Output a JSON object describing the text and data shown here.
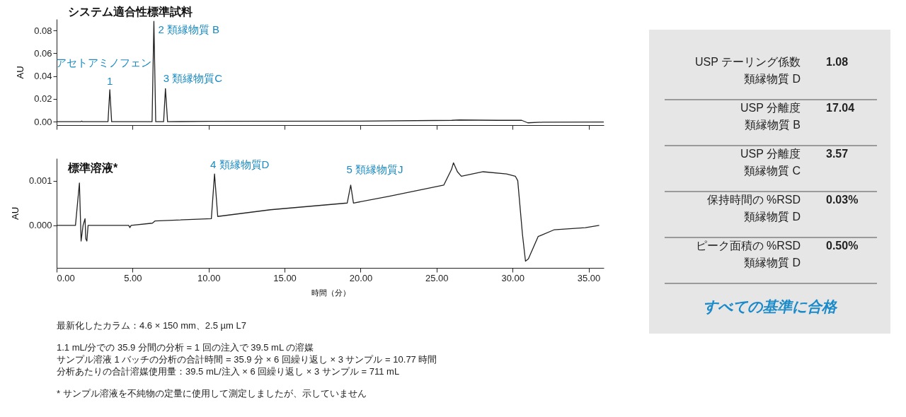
{
  "chart_data": [
    {
      "type": "line",
      "title": "システム適合性標準試料",
      "ylabel": "AU",
      "x": [
        0,
        1.6,
        1.65,
        1.7,
        3.38,
        3.5,
        3.62,
        6.28,
        6.4,
        6.52,
        7.04,
        7.16,
        7.3,
        10,
        20,
        26,
        26.5,
        29,
        30.6,
        31.0,
        32,
        36
      ],
      "series": [
        {
          "color": "#222222",
          "values": [
            0,
            0,
            0.0005,
            0,
            0,
            0.028,
            0,
            0,
            0.088,
            0,
            0,
            0.029,
            0,
            0.0003,
            0.0005,
            0.0012,
            0.0015,
            0.0012,
            0.0012,
            -0.001,
            -0.0004,
            -0.0003
          ]
        }
      ],
      "xlim": [
        0,
        36
      ],
      "xticks": [
        0,
        5,
        10,
        15,
        20,
        25,
        30,
        35
      ],
      "ylim": [
        -0.003,
        0.09
      ],
      "yticks": [
        {
          "value": 0,
          "label": "0.00"
        },
        {
          "value": 0.02,
          "label": "0.02"
        },
        {
          "value": 0.04,
          "label": "0.04"
        },
        {
          "value": 0.06,
          "label": "0.06"
        },
        {
          "value": 0.08,
          "label": "0.08"
        }
      ],
      "tick_labels": "y",
      "annotations": [
        {
          "text": "アセトアミノフェン",
          "x": 3.5,
          "y": 0.028
        },
        {
          "text": "1",
          "x": 3.5,
          "y": 0.028
        },
        {
          "text": "2 類縁物質 B",
          "x": 6.4,
          "y": 0.088
        },
        {
          "text": "3 類縁物質C",
          "x": 7.16,
          "y": 0.029
        }
      ]
    },
    {
      "type": "line",
      "title": "標準溶液*",
      "xlabel": "時間（分）",
      "ylabel": "AU",
      "x": [
        0,
        1.24,
        1.5,
        1.61,
        1.74,
        1.87,
        1.92,
        1.99,
        2.07,
        4.74,
        4.82,
        4.9,
        6.3,
        6.48,
        10.18,
        10.39,
        10.6,
        14.07,
        19.12,
        19.35,
        19.53,
        21.84,
        25.47,
        25.98,
        26.11,
        26.37,
        26.63,
        28.06,
        29.61,
        30.18,
        30.34,
        30.65,
        30.85,
        31.04,
        31.68,
        32.72,
        34.79,
        35.7
      ],
      "series": [
        {
          "color": "#222222",
          "values": [
            0,
            0,
            0.00095,
            -0.00035,
            0,
            0.00015,
            -0.0003,
            -0.00035,
            0,
            0,
            -5e-05,
            0,
            5e-05,
            0.0001,
            0.00015,
            0.00115,
            0.0002,
            0.00035,
            0.0005,
            0.0009,
            0.0005,
            0.00065,
            0.0009,
            0.00125,
            0.0014,
            0.0012,
            0.0011,
            0.0012,
            0.00115,
            0.0011,
            0.001,
            -0.0002,
            -0.0008,
            -0.00075,
            -0.00025,
            -0.0001,
            -5e-05,
            0
          ]
        }
      ],
      "xlim": [
        0,
        36
      ],
      "xticks": [
        {
          "value": 0,
          "label": "0.00"
        },
        {
          "value": 5,
          "label": "5.00"
        },
        {
          "value": 10,
          "label": "10.00"
        },
        {
          "value": 15,
          "label": "15.00"
        },
        {
          "value": 20,
          "label": "20.00"
        },
        {
          "value": 25,
          "label": "25.00"
        },
        {
          "value": 30,
          "label": "30.00"
        },
        {
          "value": 35,
          "label": "35.00"
        }
      ],
      "ylim": [
        -0.00095,
        0.0015
      ],
      "yticks": [
        {
          "value": 0,
          "label": "0.000"
        },
        {
          "value": 0.001,
          "label": "0.001"
        }
      ],
      "annotations": [
        {
          "text": "4  類縁物質D",
          "x": 10.39,
          "y": 0.00115
        },
        {
          "text": "5 類縁物質J",
          "x": 19.35,
          "y": 0.0009
        },
        "最新化したカラム：4.6 × 150 mm、2.5 µm L7",
        "1.1 mL/分での 35.9 分間の分析 = 1 回の注入で 39.5 mL の溶媒",
        "サンプル溶液 1 バッチの分析の合計時間 = 35.9 分 × 6 回繰り返し × 3 サンプル = 10.77 時間",
        "分析あたりの合計溶媒使用量：39.5 mL/注入 × 6 回繰り返し × 3 サンプル = 711 mL",
        "* サンプル溶液を不純物の定量に使用して測定しましたが、示していません"
      ]
    },
    {
      "type": "other",
      "categories": [
        "USP テーリング係数",
        "USP 分離度",
        "USP 分離度",
        "保持時間の %RSD",
        "ピーク面積の %RSD"
      ],
      "value_labels": [
        "1.08",
        "17.04",
        "3.57",
        "0.03%",
        "0.50%"
      ],
      "annotations": [
        "類縁物質 D",
        "類縁物質 B",
        "類縁物質 C",
        "類縁物質 D",
        "類縁物質 D",
        "すべての基準に合格"
      ]
    }
  ]
}
